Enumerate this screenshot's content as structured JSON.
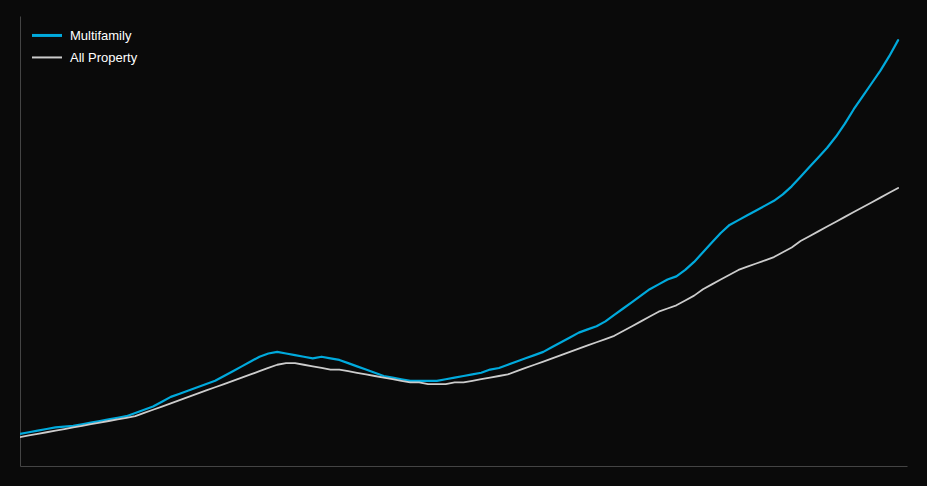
{
  "chart_data": {
    "type": "line",
    "x": [
      0,
      1,
      2,
      3,
      4,
      5,
      6,
      7,
      8,
      9,
      10,
      11,
      12,
      13,
      14,
      15,
      16,
      17,
      18,
      19,
      20,
      21,
      22,
      23,
      24,
      25,
      26,
      27,
      28,
      29,
      30,
      31,
      32,
      33,
      34,
      35,
      36,
      37,
      38,
      39,
      40,
      41,
      42,
      43,
      44,
      45,
      46,
      47,
      48,
      49,
      50,
      51,
      52,
      53,
      54,
      55,
      56,
      57,
      58,
      59,
      60,
      61,
      62,
      63,
      64,
      65,
      66,
      67,
      68,
      69,
      70,
      71,
      72,
      73,
      74,
      75,
      76,
      77,
      78,
      79,
      80,
      81,
      82,
      83,
      84,
      85,
      86,
      87,
      88,
      89,
      90,
      91,
      92,
      93,
      94,
      95,
      96,
      97,
      98,
      99
    ],
    "series": [
      {
        "name": "Multifamily",
        "color": "#00aadd",
        "values": [
          100,
          101,
          102,
          103,
          104,
          104.5,
          105,
          106,
          107,
          108,
          109,
          110,
          111,
          113,
          115,
          117,
          120,
          123,
          125,
          127,
          129,
          131,
          133,
          136,
          139,
          142,
          145,
          148,
          150,
          151,
          150,
          149,
          148,
          147,
          148,
          147,
          146,
          144,
          142,
          140,
          138,
          136,
          135,
          134,
          133,
          133,
          133,
          133,
          134,
          135,
          136,
          137,
          138,
          140,
          141,
          143,
          145,
          147,
          149,
          151,
          154,
          157,
          160,
          163,
          165,
          167,
          170,
          174,
          178,
          182,
          186,
          190,
          193,
          196,
          198,
          202,
          207,
          213,
          219,
          225,
          230,
          233,
          236,
          239,
          242,
          245,
          249,
          254,
          260,
          266,
          272,
          278,
          285,
          293,
          302,
          310,
          318,
          326,
          335,
          345
        ]
      },
      {
        "name": "All Property",
        "color": "#cccccc",
        "values": [
          98,
          99,
          100,
          101,
          102,
          103,
          104,
          105,
          106,
          107,
          108,
          109,
          110,
          111,
          113,
          115,
          117,
          119,
          121,
          123,
          125,
          127,
          129,
          131,
          133,
          135,
          137,
          139,
          141,
          143,
          144,
          144,
          143,
          142,
          141,
          140,
          140,
          139,
          138,
          137,
          136,
          135,
          134,
          133,
          132,
          132,
          131,
          131,
          131,
          132,
          132,
          133,
          134,
          135,
          136,
          137,
          139,
          141,
          143,
          145,
          147,
          149,
          151,
          153,
          155,
          157,
          159,
          161,
          164,
          167,
          170,
          173,
          176,
          178,
          180,
          183,
          186,
          190,
          193,
          196,
          199,
          202,
          204,
          206,
          208,
          210,
          213,
          216,
          220,
          223,
          226,
          229,
          232,
          235,
          238,
          241,
          244,
          247,
          250,
          253
        ]
      }
    ],
    "xlim": [
      0,
      100
    ],
    "ylim": [
      80,
      360
    ],
    "grid": false,
    "legend": "upper left",
    "tick_labels": false
  }
}
